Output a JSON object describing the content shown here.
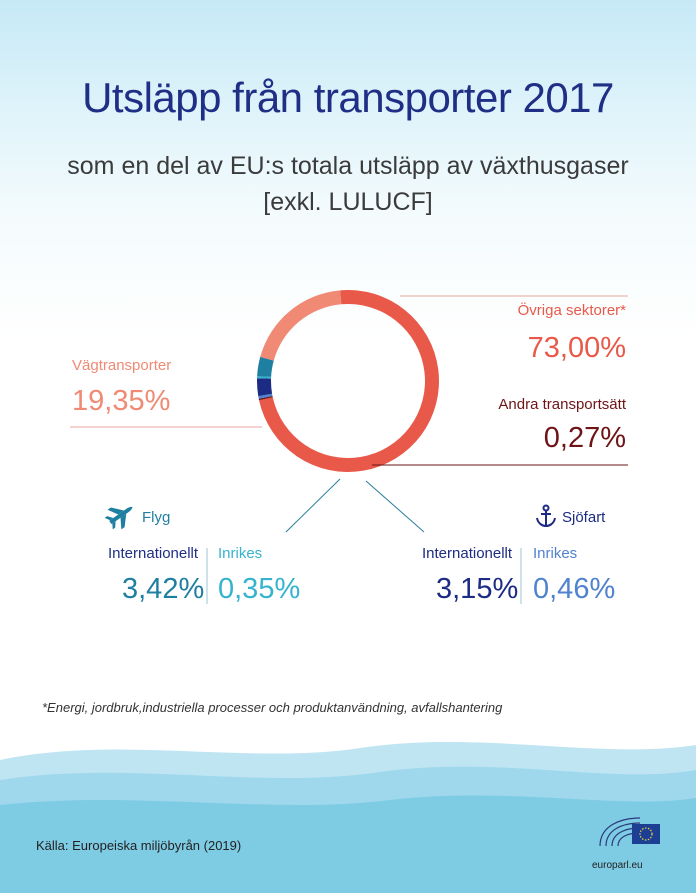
{
  "title": "Utsläpp från transporter 2017",
  "subtitle_line1": "som en del av EU:s totala utsläpp av växthusgaser",
  "subtitle_line2": "[exkl. LULUCF]",
  "colors": {
    "ovriga": "#e8594a",
    "vag": "#f08a74",
    "andra": "#6e1416",
    "flyg_int": "#1f7fa0",
    "flyg_inr": "#36b3cf",
    "sjo_int": "#1c2b84",
    "sjo_inr": "#4f82cf",
    "title": "#1f2f86"
  },
  "chart_data": {
    "type": "pie",
    "donut": true,
    "slices": [
      {
        "label": "Övriga sektorer*",
        "value": 73.0,
        "display": "73,00%",
        "color": "#e8594a"
      },
      {
        "label": "Vägtransporter",
        "value": 19.35,
        "display": "19,35%",
        "color": "#f08a74"
      },
      {
        "label": "Flyg – Internationellt",
        "value": 3.42,
        "display": "3,42%",
        "color": "#1f7fa0"
      },
      {
        "label": "Flyg – Inrikes",
        "value": 0.35,
        "display": "0,35%",
        "color": "#36b3cf"
      },
      {
        "label": "Sjöfart – Internationellt",
        "value": 3.15,
        "display": "3,15%",
        "color": "#1c2b84"
      },
      {
        "label": "Sjöfart – Inrikes",
        "value": 0.46,
        "display": "0,46%",
        "color": "#4f82cf"
      },
      {
        "label": "Andra transportsätt",
        "value": 0.27,
        "display": "0,27%",
        "color": "#6e1416"
      }
    ]
  },
  "labels": {
    "ovriga_label": "Övriga sektorer*",
    "ovriga_value": "73,00%",
    "andra_label": "Andra transportsätt",
    "andra_value": "0,27%",
    "vag_label": "Vägtransporter",
    "vag_value": "19,35%",
    "flyg_title": "Flyg",
    "flyg_int_label": "Internationellt",
    "flyg_int_value": "3,42%",
    "flyg_inr_label": "Inrikes",
    "flyg_inr_value": "0,35%",
    "sjo_title": "Sjöfart",
    "sjo_int_label": "Internationellt",
    "sjo_int_value": "3,15%",
    "sjo_inr_label": "Inrikes",
    "sjo_inr_value": "0,46%"
  },
  "footnote": "*Energi, jordbruk,industriella processer och produktanvändning, avfallshantering",
  "source": "Källa: Europeiska miljöbyrån (2019)",
  "logo_text": "europarl.eu",
  "icons": {
    "flyg": "airplane-icon",
    "sjo": "anchor-icon",
    "logo": "european-parliament-logo"
  }
}
